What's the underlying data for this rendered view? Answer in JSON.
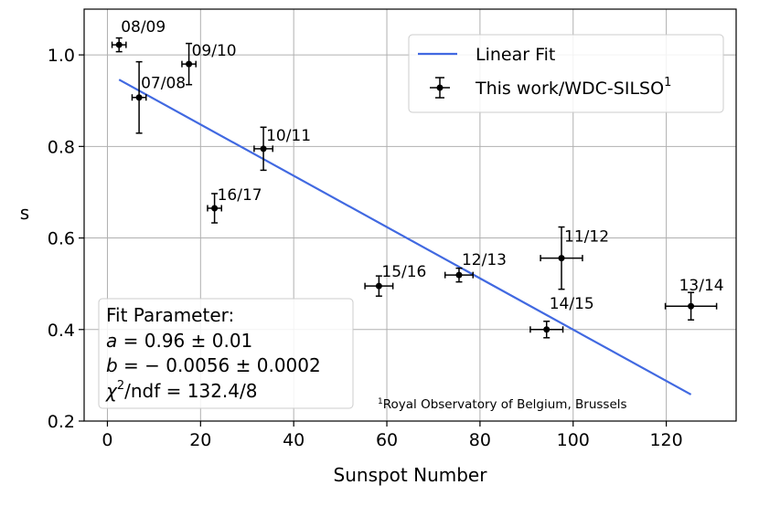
{
  "chart_data": {
    "type": "scatter",
    "xlabel": "Sunspot Number",
    "ylabel": "s",
    "xlim": [
      -5,
      135
    ],
    "ylim": [
      0.2,
      1.1
    ],
    "xticks": [
      "0",
      "20",
      "40",
      "60",
      "80",
      "100",
      "120"
    ],
    "yticks": [
      "0.2",
      "0.4",
      "0.6",
      "0.8",
      "1.0"
    ],
    "grid": true,
    "legend_placement": "top-right",
    "legend": {
      "fit_label": "Linear Fit",
      "data_label_main": "This work/WDC-SILSO",
      "data_label_sup": "1"
    },
    "fit_line": {
      "x": [
        2.5,
        125.3
      ],
      "y": [
        0.946,
        0.258
      ],
      "color": "#4169e1"
    },
    "points": [
      {
        "label": "08/09",
        "x": 2.5,
        "y": 1.022,
        "xerr": 1.5,
        "yerr": 0.015
      },
      {
        "label": "07/08",
        "x": 6.8,
        "y": 0.907,
        "xerr": 1.5,
        "yerr": 0.078
      },
      {
        "label": "09/10",
        "x": 17.5,
        "y": 0.98,
        "xerr": 1.5,
        "yerr": 0.045
      },
      {
        "label": "10/11",
        "x": 33.5,
        "y": 0.795,
        "xerr": 2.0,
        "yerr": 0.047
      },
      {
        "label": "16/17",
        "x": 23.0,
        "y": 0.665,
        "xerr": 1.5,
        "yerr": 0.032
      },
      {
        "label": "15/16",
        "x": 58.3,
        "y": 0.495,
        "xerr": 3.0,
        "yerr": 0.022
      },
      {
        "label": "12/13",
        "x": 75.5,
        "y": 0.519,
        "xerr": 3.0,
        "yerr": 0.015
      },
      {
        "label": "11/12",
        "x": 97.5,
        "y": 0.556,
        "xerr": 4.5,
        "yerr": 0.068
      },
      {
        "label": "14/15",
        "x": 94.3,
        "y": 0.4,
        "xerr": 3.5,
        "yerr": 0.018
      },
      {
        "label": "13/14",
        "x": 125.3,
        "y": 0.451,
        "xerr": 5.5,
        "yerr": 0.03
      }
    ],
    "fit_parameters": {
      "title": "Fit Parameter:",
      "a_name": "a",
      "a_value": " = 0.96 ± 0.01",
      "b_name": "b",
      "b_value": " = − 0.0056 ± 0.0002",
      "chi_name": "χ",
      "chi_sup": "2",
      "chi_value": "/ndf = 132.4/8"
    },
    "footnote": {
      "sup": "1",
      "text": "Royal Observatory of Belgium, Brussels"
    }
  }
}
